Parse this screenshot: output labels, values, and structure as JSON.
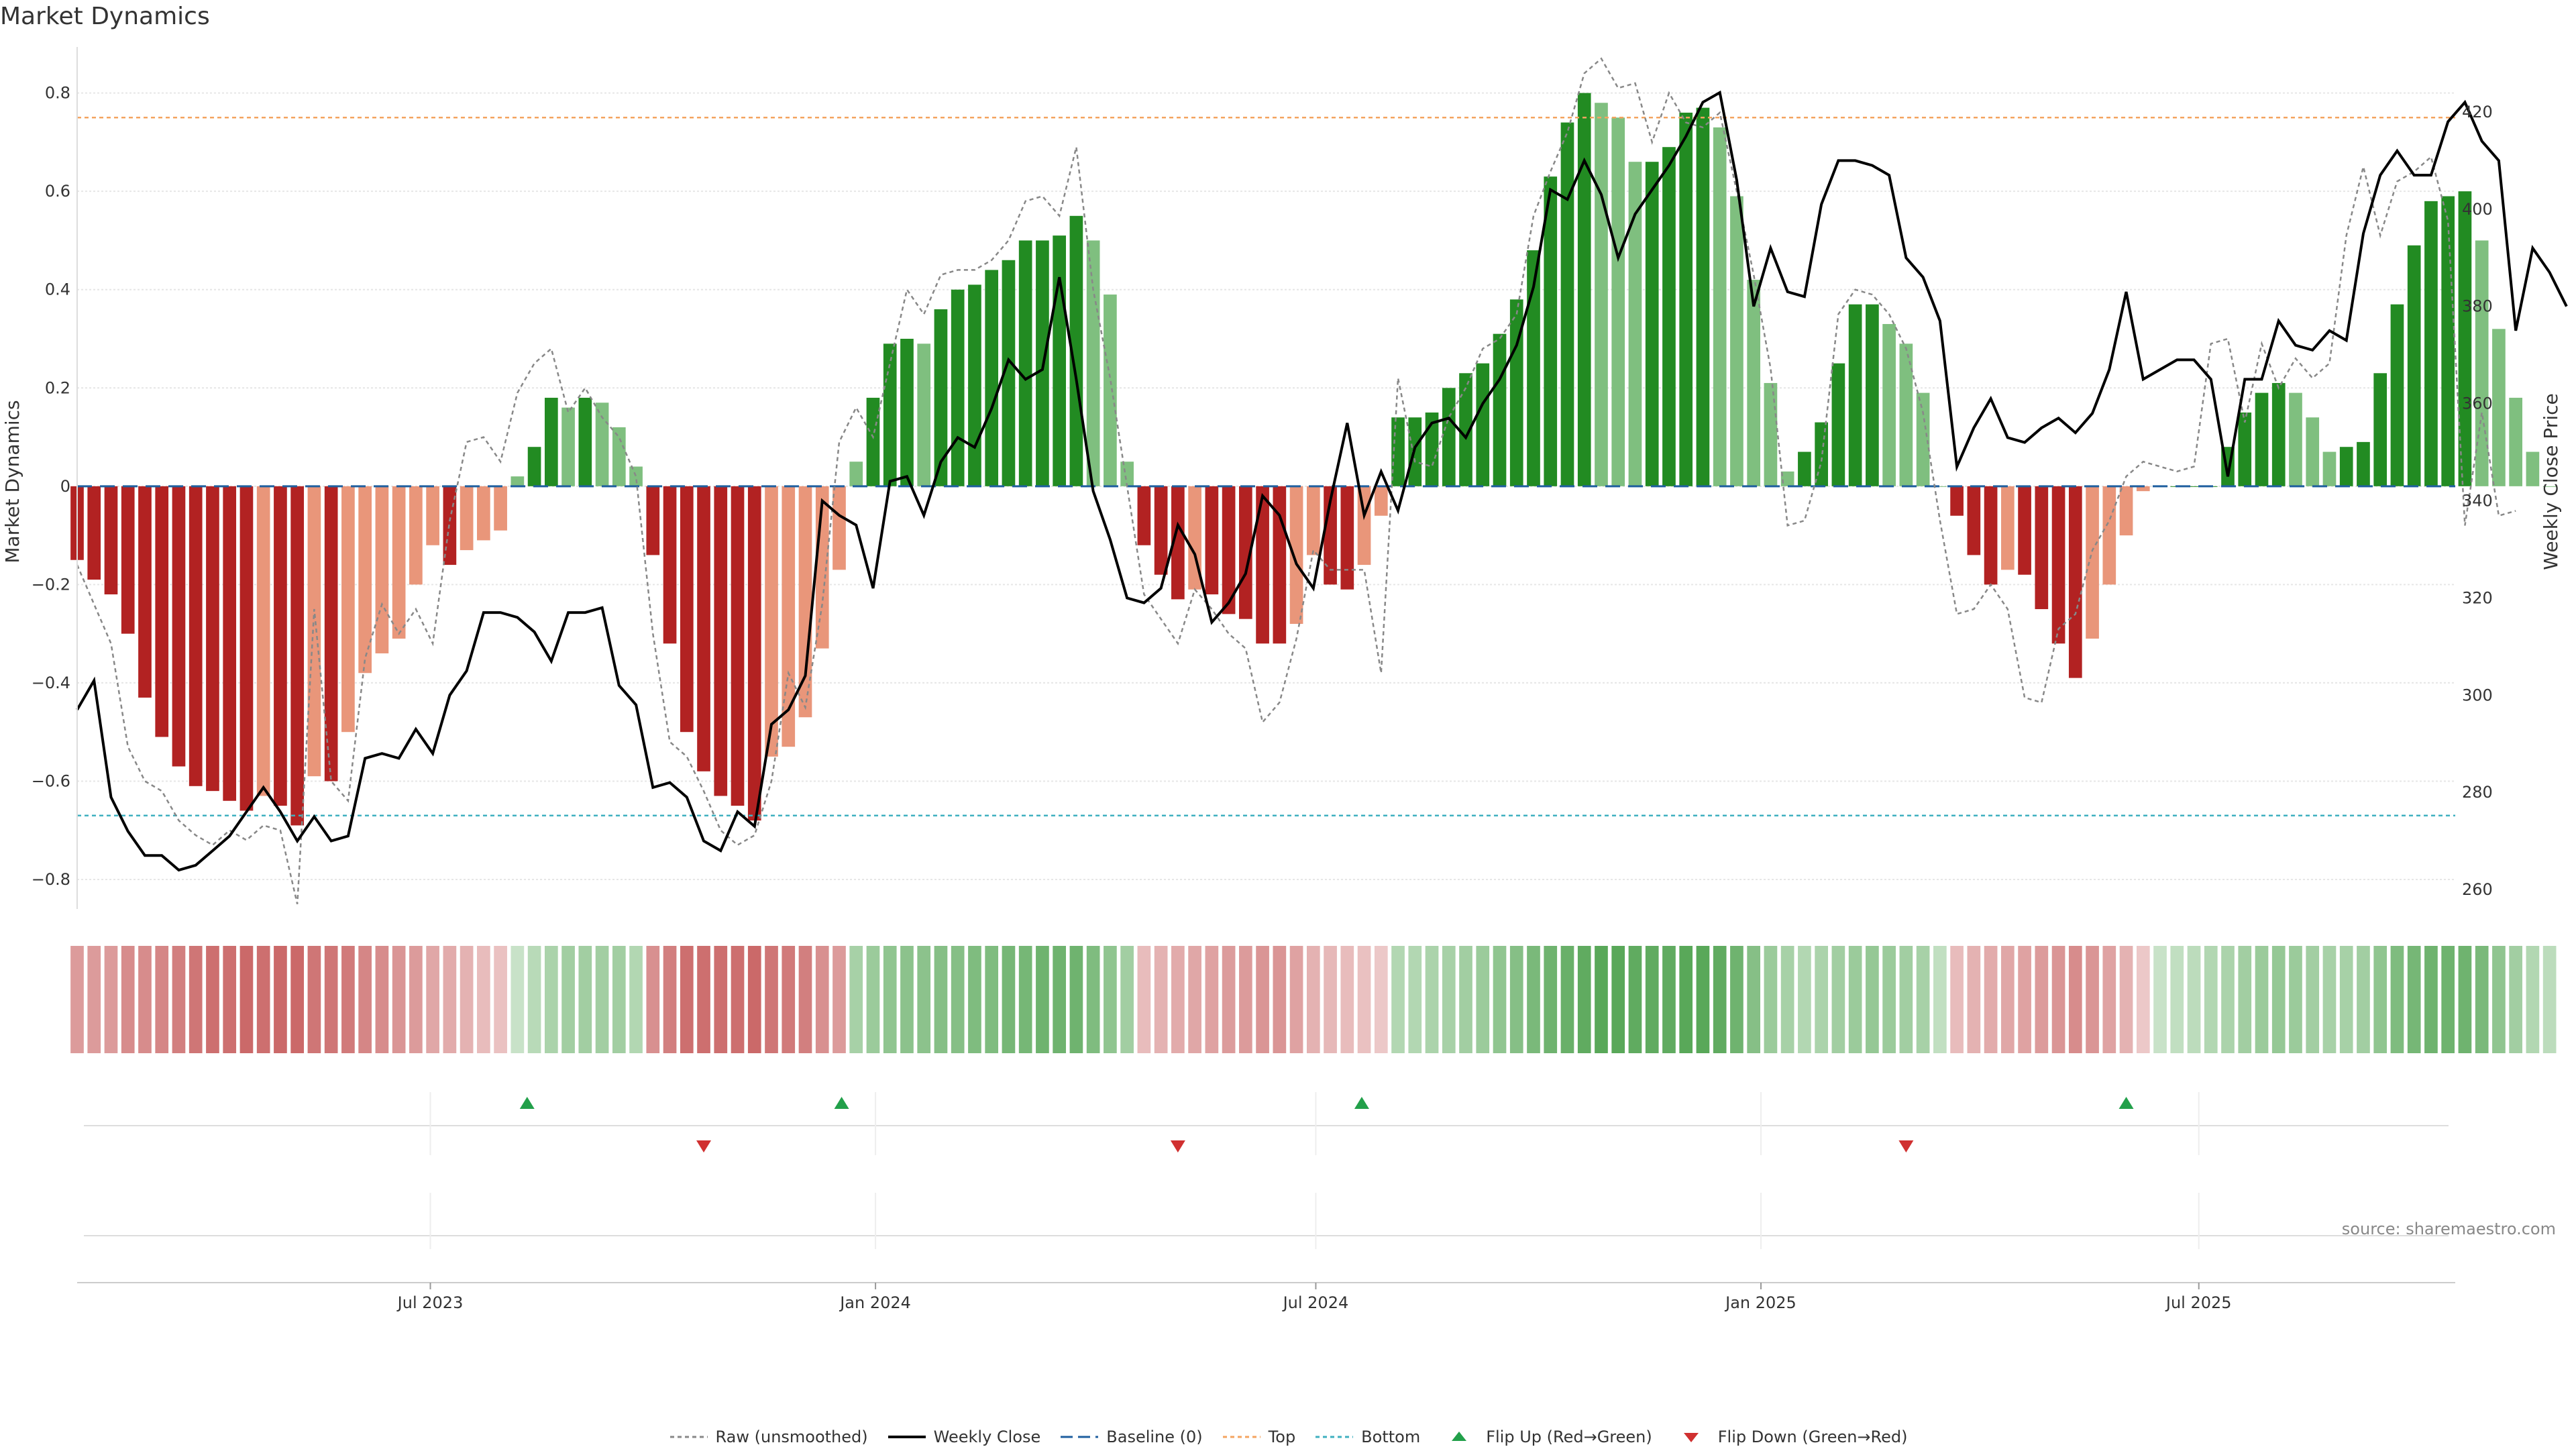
{
  "title": "Market Dynamics",
  "source": "source: sharemaestro.com",
  "chart_data": {
    "type": "bar",
    "title": "Market Dynamics",
    "ylabel": "Market Dynamics",
    "y2label": "Weekly Close Price",
    "ylim": [
      -0.86,
      0.88
    ],
    "y2lim": [
      256,
      432
    ],
    "yticks": [
      -0.8,
      -0.6,
      -0.4,
      -0.2,
      0,
      0.2,
      0.4,
      0.6,
      0.8
    ],
    "ytick_labels": [
      "−0.8",
      "−0.6",
      "−0.4",
      "−0.2",
      "0",
      "0.2",
      "0.4",
      "0.6",
      "0.8"
    ],
    "y2ticks": [
      260,
      280,
      300,
      320,
      340,
      360,
      380,
      400,
      420
    ],
    "y2tick_labels": [
      "260",
      "280",
      "300",
      "320",
      "340",
      "360",
      "380",
      "400",
      "420"
    ],
    "xlim": [
      "2023-02-05",
      "2025-10-15"
    ],
    "xticks": [
      "2023-07-01",
      "2024-01-01",
      "2024-07-01",
      "2025-01-01",
      "2025-07-01"
    ],
    "xtick_labels": [
      "Jul 2023",
      "Jan 2024",
      "Jul 2024",
      "Jan 2025",
      "Jul 2025"
    ],
    "top_line": 0.75,
    "bottom_line": -0.67,
    "colors": {
      "strong_red": "#b22222",
      "weak_red": "#e9967a",
      "strong_green": "#228b22",
      "weak_green": "#7fbf7f",
      "raw": "#888888",
      "close": "#000000",
      "baseline": "#1f5f9f",
      "top": "#f4a460",
      "bottom": "#3fb0c0",
      "flip_up": "#22a04a",
      "flip_down": "#d03030",
      "grid": "#e6e6e6"
    },
    "start_date": "2023-02-05",
    "bars": [
      -0.15,
      -0.19,
      -0.22,
      -0.3,
      -0.43,
      -0.51,
      -0.57,
      -0.61,
      -0.62,
      -0.64,
      -0.66,
      -0.63,
      -0.65,
      -0.69,
      -0.59,
      -0.6,
      -0.5,
      -0.38,
      -0.34,
      -0.31,
      -0.2,
      -0.12,
      -0.16,
      -0.13,
      -0.11,
      -0.09,
      0.02,
      0.08,
      0.18,
      0.16,
      0.18,
      0.17,
      0.12,
      0.04,
      -0.14,
      -0.32,
      -0.5,
      -0.58,
      -0.63,
      -0.65,
      -0.68,
      -0.55,
      -0.53,
      -0.47,
      -0.33,
      -0.17,
      0.05,
      0.18,
      0.29,
      0.3,
      0.29,
      0.36,
      0.4,
      0.41,
      0.44,
      0.46,
      0.5,
      0.5,
      0.51,
      0.55,
      0.5,
      0.39,
      0.05,
      -0.12,
      -0.18,
      -0.23,
      -0.21,
      -0.22,
      -0.26,
      -0.27,
      -0.32,
      -0.32,
      -0.28,
      -0.14,
      -0.2,
      -0.21,
      -0.16,
      -0.06,
      0.14,
      0.14,
      0.15,
      0.2,
      0.23,
      0.25,
      0.31,
      0.38,
      0.48,
      0.63,
      0.74,
      0.8,
      0.78,
      0.75,
      0.66,
      0.66,
      0.69,
      0.76,
      0.77,
      0.73,
      0.59,
      0.42,
      0.21,
      0.03,
      0.07,
      0.13,
      0.25,
      0.37,
      0.37,
      0.33,
      0.29,
      0.19,
      0.0,
      -0.06,
      -0.14,
      -0.2,
      -0.17,
      -0.18,
      -0.25,
      -0.32,
      -0.39,
      -0.31,
      -0.2,
      -0.1,
      -0.01,
      0.0,
      0.0,
      0.0,
      0.0,
      0.08,
      0.15,
      0.19,
      0.21,
      0.19,
      0.14,
      0.07,
      0.08,
      0.09,
      0.23,
      0.37,
      0.49,
      0.58,
      0.59,
      0.6,
      0.5,
      0.32,
      0.18,
      0.07,
      0.0
    ],
    "raw": [
      -0.16,
      -0.24,
      -0.32,
      -0.53,
      -0.6,
      -0.62,
      -0.68,
      -0.71,
      -0.73,
      -0.7,
      -0.72,
      -0.69,
      -0.7,
      -0.85,
      -0.25,
      -0.6,
      -0.64,
      -0.35,
      -0.24,
      -0.3,
      -0.25,
      -0.32,
      -0.07,
      0.09,
      0.1,
      0.05,
      0.19,
      0.25,
      0.28,
      0.15,
      0.2,
      0.14,
      0.1,
      0.02,
      -0.3,
      -0.52,
      -0.55,
      -0.62,
      -0.7,
      -0.73,
      -0.71,
      -0.6,
      -0.38,
      -0.45,
      -0.24,
      0.09,
      0.16,
      0.1,
      0.25,
      0.4,
      0.35,
      0.43,
      0.44,
      0.44,
      0.46,
      0.5,
      0.58,
      0.59,
      0.55,
      0.69,
      0.4,
      0.22,
      0.0,
      -0.22,
      -0.27,
      -0.32,
      -0.21,
      -0.25,
      -0.3,
      -0.33,
      -0.48,
      -0.44,
      -0.31,
      -0.13,
      -0.17,
      -0.17,
      -0.17,
      -0.38,
      0.22,
      0.05,
      0.04,
      0.14,
      0.2,
      0.28,
      0.3,
      0.35,
      0.55,
      0.64,
      0.72,
      0.84,
      0.87,
      0.81,
      0.82,
      0.7,
      0.8,
      0.74,
      0.73,
      0.76,
      0.6,
      0.43,
      0.24,
      -0.08,
      -0.07,
      0.05,
      0.35,
      0.4,
      0.39,
      0.35,
      0.28,
      0.15,
      -0.07,
      -0.26,
      -0.25,
      -0.2,
      -0.25,
      -0.43,
      -0.44,
      -0.29,
      -0.26,
      -0.13,
      -0.07,
      0.02,
      0.05,
      0.04,
      0.03,
      0.04,
      0.29,
      0.3,
      0.13,
      0.29,
      0.2,
      0.26,
      0.22,
      0.25,
      0.51,
      0.65,
      0.51,
      0.62,
      0.64,
      0.67,
      0.54,
      -0.08,
      0.15,
      -0.06,
      -0.05
    ],
    "close": [
      297,
      303,
      279,
      272,
      267,
      267,
      264,
      265,
      268,
      271,
      276,
      281,
      276,
      270,
      275,
      270,
      271,
      287,
      288,
      287,
      293,
      288,
      300,
      305,
      317,
      317,
      316,
      313,
      307,
      317,
      317,
      318,
      302,
      298,
      281,
      282,
      279,
      270,
      268,
      276,
      273,
      294,
      297,
      304,
      340,
      337,
      335,
      322,
      344,
      345,
      337,
      348,
      353,
      351,
      359,
      369,
      365,
      367,
      386,
      365,
      342,
      332,
      320,
      319,
      322,
      335,
      329,
      315,
      319,
      325,
      341,
      337,
      327,
      322,
      340,
      356,
      337,
      346,
      338,
      351,
      356,
      357,
      353,
      360,
      365,
      372,
      384,
      404,
      402,
      410,
      403,
      390,
      399,
      404,
      409,
      415,
      422,
      424,
      406,
      380,
      392,
      383,
      382,
      401,
      410,
      410,
      409,
      407,
      390,
      386,
      377,
      347,
      355,
      361,
      353,
      352,
      355,
      357,
      354,
      358,
      367,
      383,
      365,
      367,
      369,
      369,
      365,
      345,
      365,
      365,
      377,
      372,
      371,
      375,
      373,
      395,
      407,
      412,
      407,
      407,
      418,
      422,
      414,
      410,
      375,
      392,
      387,
      380
    ],
    "close_start": "2023-02-05",
    "strip_intensity": [
      0.45,
      0.45,
      0.45,
      0.52,
      0.52,
      0.55,
      0.58,
      0.62,
      0.65,
      0.65,
      0.68,
      0.65,
      0.68,
      0.68,
      0.62,
      0.62,
      0.6,
      0.55,
      0.52,
      0.48,
      0.45,
      0.4,
      0.38,
      0.35,
      0.3,
      0.28,
      0.25,
      0.32,
      0.38,
      0.42,
      0.42,
      0.42,
      0.42,
      0.35,
      0.5,
      0.58,
      0.65,
      0.65,
      0.65,
      0.65,
      0.68,
      0.62,
      0.6,
      0.58,
      0.5,
      0.45,
      0.4,
      0.45,
      0.5,
      0.52,
      0.52,
      0.55,
      0.55,
      0.58,
      0.58,
      0.62,
      0.62,
      0.65,
      0.65,
      0.65,
      0.58,
      0.5,
      0.42,
      0.3,
      0.35,
      0.38,
      0.4,
      0.42,
      0.45,
      0.45,
      0.48,
      0.48,
      0.42,
      0.35,
      0.32,
      0.3,
      0.28,
      0.25,
      0.35,
      0.35,
      0.38,
      0.4,
      0.42,
      0.45,
      0.5,
      0.55,
      0.6,
      0.65,
      0.68,
      0.72,
      0.75,
      0.75,
      0.72,
      0.72,
      0.72,
      0.75,
      0.75,
      0.72,
      0.65,
      0.55,
      0.45,
      0.4,
      0.35,
      0.38,
      0.42,
      0.45,
      0.48,
      0.45,
      0.42,
      0.4,
      0.28,
      0.3,
      0.35,
      0.38,
      0.4,
      0.42,
      0.45,
      0.48,
      0.52,
      0.48,
      0.42,
      0.35,
      0.25,
      0.25,
      0.28,
      0.3,
      0.35,
      0.38,
      0.42,
      0.45,
      0.48,
      0.45,
      0.42,
      0.4,
      0.4,
      0.42,
      0.5,
      0.58,
      0.62,
      0.65,
      0.65,
      0.65,
      0.6,
      0.5,
      0.42,
      0.35,
      0.3
    ],
    "flips_up": [
      "2023-08-10",
      "2023-12-18",
      "2024-07-20",
      "2025-06-01"
    ],
    "flips_down": [
      "2023-10-22",
      "2024-05-05",
      "2025-03-02"
    ],
    "legend": [
      {
        "label": "Raw (unsmoothed)",
        "key": "raw"
      },
      {
        "label": "Weekly Close",
        "key": "close"
      },
      {
        "label": "Baseline (0)",
        "key": "baseline"
      },
      {
        "label": "Top",
        "key": "top"
      },
      {
        "label": "Bottom",
        "key": "bottom"
      },
      {
        "label": "Flip Up (Red→Green)",
        "key": "flip_up"
      },
      {
        "label": "Flip Down (Green→Red)",
        "key": "flip_down"
      }
    ]
  }
}
